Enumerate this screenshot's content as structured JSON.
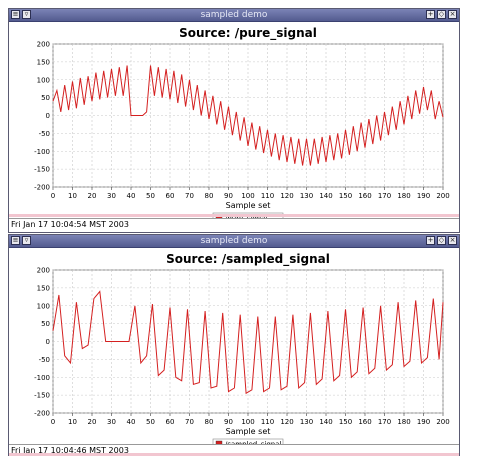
{
  "windows": [
    {
      "window_title": "sampled demo",
      "chart_title": "Source: /pure_signal",
      "xlabel": "Sample set",
      "legend": "/pure_signal",
      "status": "Fri Jan 17 10:04:54 MST 2003"
    },
    {
      "window_title": "sampled demo",
      "chart_title": "Source: /sampled_signal",
      "xlabel": "Sample set",
      "legend": "/sampled_signal",
      "status": "Fri Jan 17 10:04:46 MST 2003"
    }
  ],
  "colors": {
    "series": "#d42020",
    "grid": "#c8c8c8",
    "titlebar": "#636ba0"
  },
  "icons": [
    "menu-icon",
    "minimize-icon",
    "move-icon",
    "shade-icon",
    "close-icon"
  ],
  "chart_data": [
    {
      "type": "line",
      "title": "Source: /pure_signal",
      "xlabel": "Sample set",
      "ylabel": "",
      "xlim": [
        0,
        200
      ],
      "ylim": [
        -200,
        200
      ],
      "xticks": [
        0,
        10,
        20,
        30,
        40,
        50,
        60,
        70,
        80,
        90,
        100,
        110,
        120,
        130,
        140,
        150,
        160,
        170,
        180,
        190,
        200
      ],
      "yticks": [
        -200,
        -150,
        -100,
        -50,
        0,
        50,
        100,
        150,
        200
      ],
      "grid": true,
      "legend_position": "bottom-center",
      "series": [
        {
          "name": "/pure_signal",
          "x": [
            0,
            2,
            4,
            6,
            8,
            10,
            12,
            14,
            16,
            18,
            20,
            22,
            24,
            26,
            28,
            30,
            32,
            34,
            36,
            38,
            40,
            42,
            44,
            46,
            48,
            50,
            52,
            54,
            56,
            58,
            60,
            62,
            64,
            66,
            68,
            70,
            72,
            74,
            76,
            78,
            80,
            82,
            84,
            86,
            88,
            90,
            92,
            94,
            96,
            98,
            100,
            102,
            104,
            106,
            108,
            110,
            112,
            114,
            116,
            118,
            120,
            122,
            124,
            126,
            128,
            130,
            132,
            134,
            136,
            138,
            140,
            142,
            144,
            146,
            148,
            150,
            152,
            154,
            156,
            158,
            160,
            162,
            164,
            166,
            168,
            170,
            172,
            174,
            176,
            178,
            180,
            182,
            184,
            186,
            188,
            190,
            192,
            194,
            196,
            198,
            200
          ],
          "y": [
            40,
            70,
            10,
            85,
            15,
            95,
            20,
            105,
            30,
            110,
            40,
            120,
            45,
            125,
            50,
            130,
            55,
            135,
            55,
            140,
            0,
            0,
            0,
            0,
            10,
            140,
            55,
            135,
            50,
            130,
            45,
            125,
            35,
            115,
            25,
            100,
            15,
            85,
            0,
            70,
            -10,
            55,
            -25,
            40,
            -40,
            25,
            -55,
            10,
            -70,
            -5,
            -85,
            -20,
            -95,
            -30,
            -105,
            -40,
            -115,
            -50,
            -125,
            -55,
            -130,
            -60,
            -135,
            -65,
            -140,
            -65,
            -140,
            -65,
            -135,
            -60,
            -130,
            -55,
            -125,
            -50,
            -120,
            -40,
            -110,
            -30,
            -100,
            -20,
            -90,
            -10,
            -80,
            0,
            -70,
            10,
            -55,
            25,
            -40,
            40,
            -25,
            55,
            -10,
            70,
            5,
            80,
            15,
            70,
            -10,
            40,
            -5
          ]
        }
      ]
    },
    {
      "type": "line",
      "title": "Source: /sampled_signal",
      "xlabel": "Sample set",
      "ylabel": "",
      "xlim": [
        0,
        200
      ],
      "ylim": [
        -200,
        200
      ],
      "xticks": [
        0,
        10,
        20,
        30,
        40,
        50,
        60,
        70,
        80,
        90,
        100,
        110,
        120,
        130,
        140,
        150,
        160,
        170,
        180,
        190,
        200
      ],
      "yticks": [
        -200,
        -150,
        -100,
        -50,
        0,
        50,
        100,
        150,
        200
      ],
      "grid": true,
      "legend_position": "bottom-center",
      "series": [
        {
          "name": "/sampled_signal",
          "x": [
            0,
            3,
            6,
            9,
            12,
            15,
            18,
            21,
            24,
            27,
            30,
            33,
            36,
            39,
            42,
            45,
            48,
            51,
            54,
            57,
            60,
            63,
            66,
            69,
            72,
            75,
            78,
            81,
            84,
            87,
            90,
            93,
            96,
            99,
            102,
            105,
            108,
            111,
            114,
            117,
            120,
            123,
            126,
            129,
            132,
            135,
            138,
            141,
            144,
            147,
            150,
            153,
            156,
            159,
            162,
            165,
            168,
            171,
            174,
            177,
            180,
            183,
            186,
            189,
            192,
            195,
            198,
            200
          ],
          "y": [
            30,
            130,
            -40,
            -60,
            110,
            -20,
            -10,
            120,
            140,
            0,
            0,
            0,
            0,
            0,
            100,
            -60,
            -40,
            105,
            -95,
            -80,
            95,
            -100,
            -110,
            90,
            -120,
            -115,
            85,
            -130,
            -125,
            80,
            -140,
            -130,
            75,
            -145,
            -135,
            70,
            -140,
            -130,
            70,
            -135,
            -125,
            75,
            -130,
            -115,
            80,
            -120,
            -105,
            85,
            -110,
            -95,
            90,
            -100,
            -85,
            95,
            -90,
            -75,
            100,
            -80,
            -65,
            110,
            -70,
            -55,
            115,
            -60,
            -45,
            120,
            -50,
            110
          ]
        }
      ]
    }
  ]
}
